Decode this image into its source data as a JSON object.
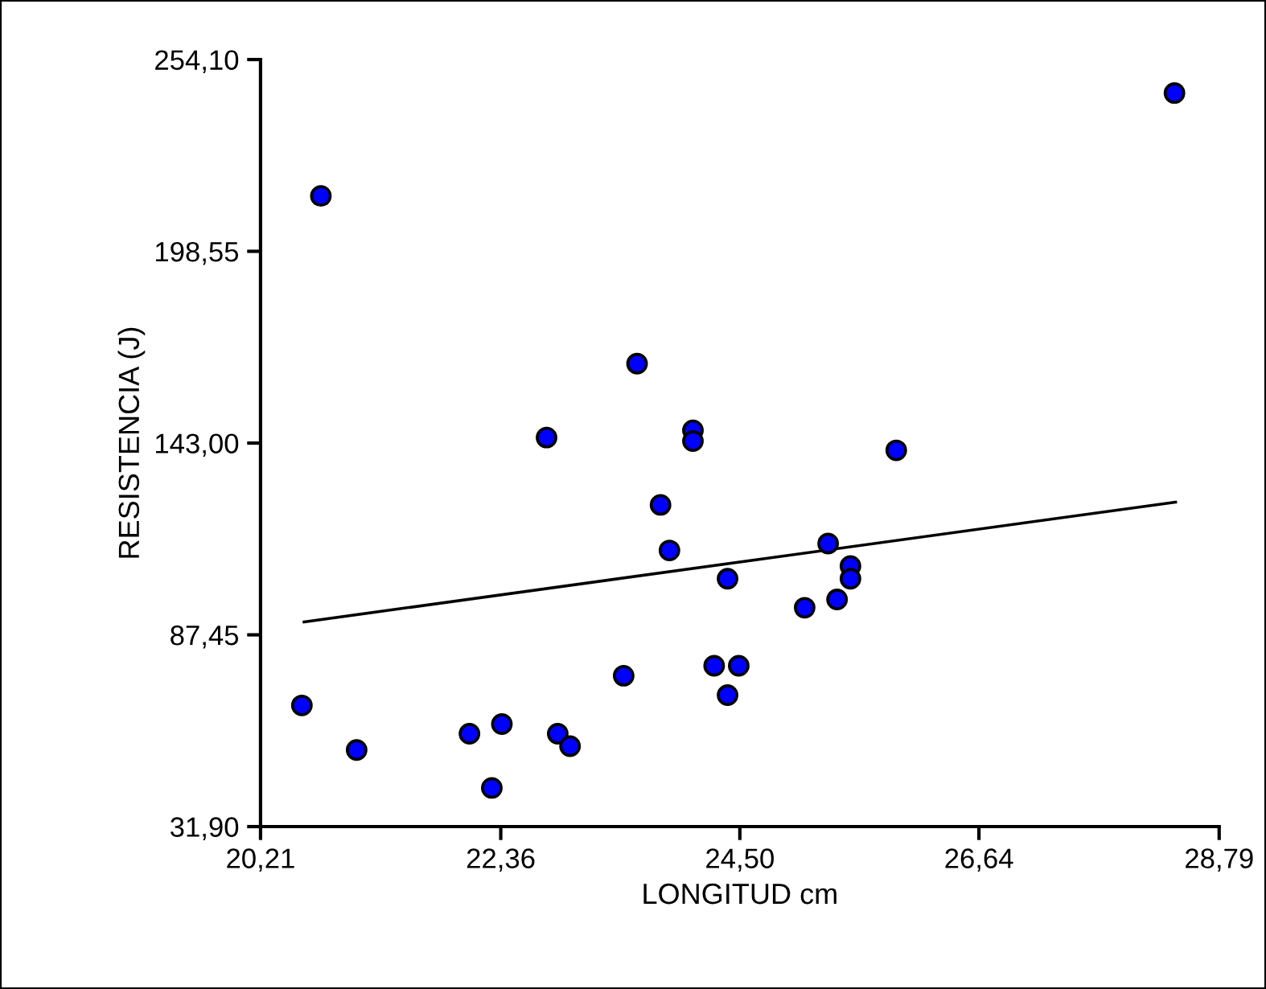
{
  "chart_data": {
    "type": "scatter",
    "xlabel": "LONGITUD cm",
    "ylabel": "RESISTENCIA (J)",
    "xlim": [
      20.21,
      28.79
    ],
    "ylim": [
      31.9,
      254.1
    ],
    "xticks": [
      {
        "value": 20.21,
        "label": "20,21"
      },
      {
        "value": 22.36,
        "label": "22,36"
      },
      {
        "value": 24.5,
        "label": "24,50"
      },
      {
        "value": 26.64,
        "label": "26,64"
      },
      {
        "value": 28.79,
        "label": "28,79"
      }
    ],
    "yticks": [
      {
        "value": 31.9,
        "label": "31,90"
      },
      {
        "value": 87.45,
        "label": "87,45"
      },
      {
        "value": 143.0,
        "label": "143,00"
      },
      {
        "value": 198.55,
        "label": "198,55"
      },
      {
        "value": 254.1,
        "label": "254,10"
      }
    ],
    "grid": false,
    "legend": false,
    "series": [
      {
        "marker": "circle",
        "color": "#0000ff",
        "x": [
          20.75,
          22.77,
          23.58,
          24.08,
          24.08,
          28.39,
          25.9,
          20.58,
          21.07,
          22.08,
          22.37,
          22.28,
          22.87,
          22.98,
          23.46,
          23.79,
          23.87,
          24.39,
          24.27,
          24.49,
          24.39,
          25.08,
          25.29,
          25.37,
          25.49,
          25.49
        ],
        "values": [
          214.6,
          144.6,
          166.0,
          146.7,
          143.6,
          244.4,
          140.9,
          67.0,
          54.1,
          58.8,
          61.6,
          43.1,
          58.8,
          55.2,
          75.6,
          125.1,
          111.9,
          103.7,
          78.5,
          78.5,
          70.0,
          95.3,
          113.9,
          97.7,
          107.4,
          103.7
        ]
      },
      {
        "type": "line",
        "marker": "none",
        "color": "#000000",
        "x": [
          20.6,
          28.4
        ],
        "values": [
          91.2,
          125.9
        ]
      }
    ]
  }
}
